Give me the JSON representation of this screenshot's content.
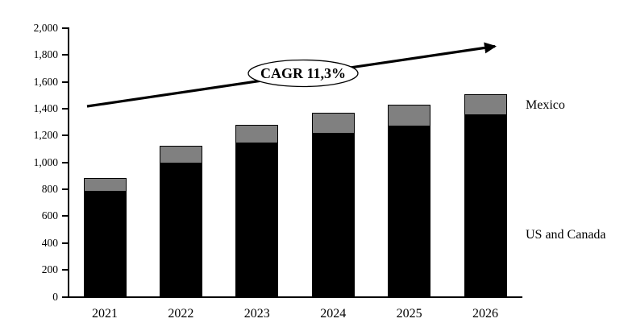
{
  "chart_data": {
    "type": "bar",
    "stacked": true,
    "title": "",
    "xlabel": "",
    "ylabel": "",
    "categories": [
      "2021",
      "2022",
      "2023",
      "2024",
      "2025",
      "2026"
    ],
    "series": [
      {
        "name": "US and Canada",
        "color": "#000000",
        "values": [
          780,
          990,
          1140,
          1215,
          1270,
          1350
        ]
      },
      {
        "name": "Mexico",
        "color": "#808080",
        "values": [
          105,
          135,
          140,
          155,
          160,
          160
        ]
      }
    ],
    "totals": [
      885,
      1125,
      1280,
      1370,
      1430,
      1510
    ],
    "ylim": [
      0,
      2000
    ],
    "ytick_step": 200,
    "ytick_labels": [
      "0",
      "200",
      "400",
      "600",
      "800",
      "1,000",
      "1,200",
      "1,400",
      "1,600",
      "1,800",
      "2,000"
    ],
    "grid": false,
    "legend_position": "labels-right-of-plot",
    "annotation": {
      "label": "CAGR 11,3%"
    }
  },
  "right_labels": {
    "mexico": "Mexico",
    "us_canada": "US and Canada"
  }
}
